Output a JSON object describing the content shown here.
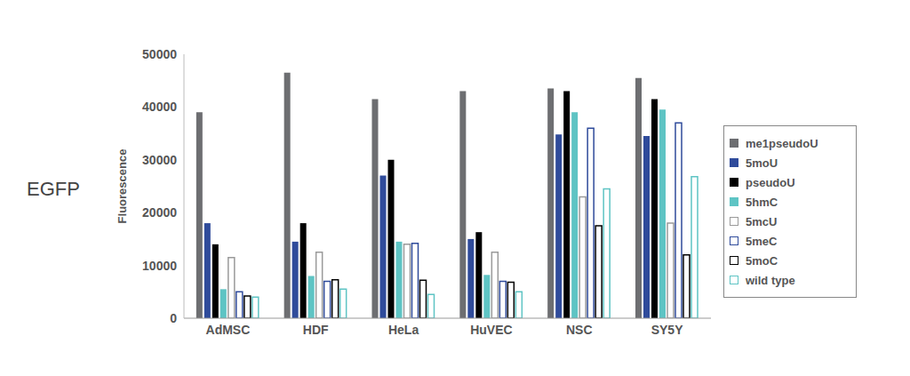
{
  "chart_data": {
    "type": "bar",
    "title": "EGFP",
    "y_label": "Fluorescence",
    "categories": [
      "AdMSC",
      "HDF",
      "HeLa",
      "HuVEC",
      "NSC",
      "SY5Y"
    ],
    "ylim": [
      0,
      50000
    ],
    "yticks": [
      0,
      10000,
      20000,
      30000,
      40000,
      50000
    ],
    "grid": false,
    "legend": "right",
    "series": [
      {
        "name": "me1pseudoU",
        "color": "#6d6e71",
        "marker": "filled",
        "values": [
          39000,
          46500,
          41500,
          43000,
          43500,
          45500
        ]
      },
      {
        "name": "5moU",
        "color": "#2f4b9b",
        "marker": "filled",
        "values": [
          18000,
          14500,
          27000,
          15000,
          34800,
          34500
        ]
      },
      {
        "name": "pseudoU",
        "color": "#000000",
        "marker": "filled",
        "values": [
          14000,
          18000,
          30000,
          16300,
          43000,
          41500
        ]
      },
      {
        "name": "5hmC",
        "color": "#5ec4c4",
        "marker": "filled",
        "values": [
          5500,
          8000,
          14500,
          8200,
          39000,
          39500
        ]
      },
      {
        "name": "5mcU",
        "color": "#9a9a9a",
        "marker": "hollow",
        "values": [
          11500,
          12500,
          14000,
          12500,
          23000,
          18000
        ]
      },
      {
        "name": "5meC",
        "color": "#2f4b9b",
        "marker": "hollow",
        "values": [
          5000,
          7000,
          14200,
          7000,
          36000,
          37000
        ]
      },
      {
        "name": "5moC",
        "color": "#000000",
        "marker": "hollow",
        "values": [
          4200,
          7300,
          7200,
          6800,
          17500,
          12000
        ]
      },
      {
        "name": "wild type",
        "color": "#5ec4c4",
        "marker": "hollow",
        "values": [
          4000,
          5500,
          4500,
          5000,
          24500,
          26800
        ]
      }
    ]
  }
}
